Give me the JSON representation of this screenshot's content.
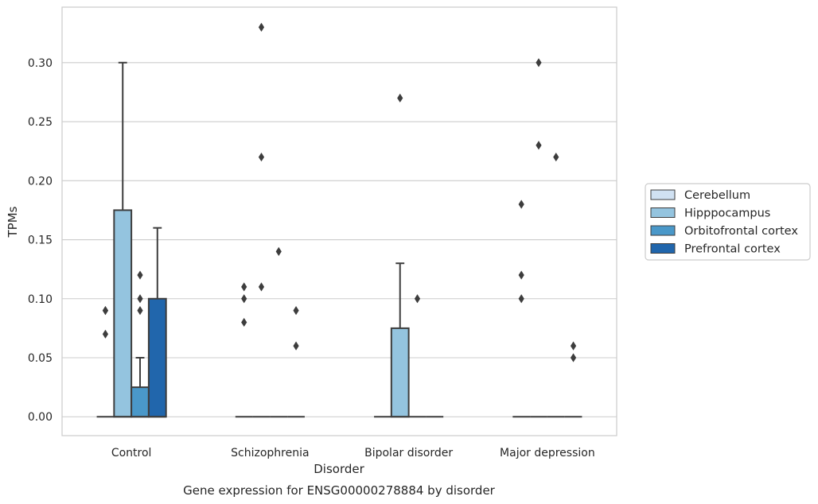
{
  "chart_data": {
    "type": "box",
    "title": "Gene expression for ENSG00000278884 by disorder",
    "xlabel": "Disorder",
    "ylabel": "TPMs",
    "ylim": [
      -0.016,
      0.347
    ],
    "yticks": [
      0.0,
      0.05,
      0.1,
      0.15,
      0.2,
      0.25,
      0.3
    ],
    "ytick_labels": [
      "0.00",
      "0.05",
      "0.10",
      "0.15",
      "0.20",
      "0.25",
      "0.30"
    ],
    "grid": true,
    "legend_position": "right",
    "categories": [
      "Control",
      "Schizophrenia",
      "Bipolar disorder",
      "Major depression"
    ],
    "series": [
      {
        "name": "Cerebellum",
        "color": "#d0e1f2",
        "boxes": [
          {
            "q1": 0,
            "median": 0,
            "q3": 0,
            "whisker_low": 0,
            "whisker_high": 0,
            "outliers": [
              0.07,
              0.09,
              0.09
            ]
          },
          {
            "q1": 0,
            "median": 0,
            "q3": 0,
            "whisker_low": 0,
            "whisker_high": 0,
            "outliers": [
              0.08,
              0.1,
              0.11
            ]
          },
          {
            "q1": 0,
            "median": 0,
            "q3": 0,
            "whisker_low": 0,
            "whisker_high": 0,
            "outliers": []
          },
          {
            "q1": 0,
            "median": 0,
            "q3": 0,
            "whisker_low": 0,
            "whisker_high": 0,
            "outliers": [
              0.1,
              0.12,
              0.18
            ]
          }
        ]
      },
      {
        "name": "Hipppocampus",
        "color": "#94c4df",
        "boxes": [
          {
            "q1": 0,
            "median": 0,
            "q3": 0.175,
            "whisker_low": 0,
            "whisker_high": 0.3,
            "outliers": []
          },
          {
            "q1": 0,
            "median": 0,
            "q3": 0,
            "whisker_low": 0,
            "whisker_high": 0,
            "outliers": [
              0.11,
              0.22,
              0.33
            ]
          },
          {
            "q1": 0,
            "median": 0,
            "q3": 0.075,
            "whisker_low": 0,
            "whisker_high": 0.13,
            "outliers": [
              0.27
            ]
          },
          {
            "q1": 0,
            "median": 0,
            "q3": 0,
            "whisker_low": 0,
            "whisker_high": 0,
            "outliers": [
              0.23,
              0.3
            ]
          }
        ]
      },
      {
        "name": "Orbitofrontal cortex",
        "color": "#4a98c9",
        "boxes": [
          {
            "q1": 0,
            "median": 0,
            "q3": 0.025,
            "whisker_low": 0,
            "whisker_high": 0.05,
            "outliers": [
              0.09,
              0.1,
              0.12
            ]
          },
          {
            "q1": 0,
            "median": 0,
            "q3": 0,
            "whisker_low": 0,
            "whisker_high": 0,
            "outliers": [
              0.14
            ]
          },
          {
            "q1": 0,
            "median": 0,
            "q3": 0,
            "whisker_low": 0,
            "whisker_high": 0,
            "outliers": [
              0.1
            ]
          },
          {
            "q1": 0,
            "median": 0,
            "q3": 0,
            "whisker_low": 0,
            "whisker_high": 0,
            "outliers": [
              0.22
            ]
          }
        ]
      },
      {
        "name": "Prefrontal cortex",
        "color": "#2166ac",
        "boxes": [
          {
            "q1": 0,
            "median": 0,
            "q3": 0.1,
            "whisker_low": 0,
            "whisker_high": 0.16,
            "outliers": []
          },
          {
            "q1": 0,
            "median": 0,
            "q3": 0,
            "whisker_low": 0,
            "whisker_high": 0,
            "outliers": [
              0.06,
              0.09
            ]
          },
          {
            "q1": 0,
            "median": 0,
            "q3": 0,
            "whisker_low": 0,
            "whisker_high": 0,
            "outliers": []
          },
          {
            "q1": 0,
            "median": 0,
            "q3": 0,
            "whisker_low": 0,
            "whisker_high": 0,
            "outliers": [
              0.05,
              0.06
            ]
          }
        ]
      }
    ]
  }
}
